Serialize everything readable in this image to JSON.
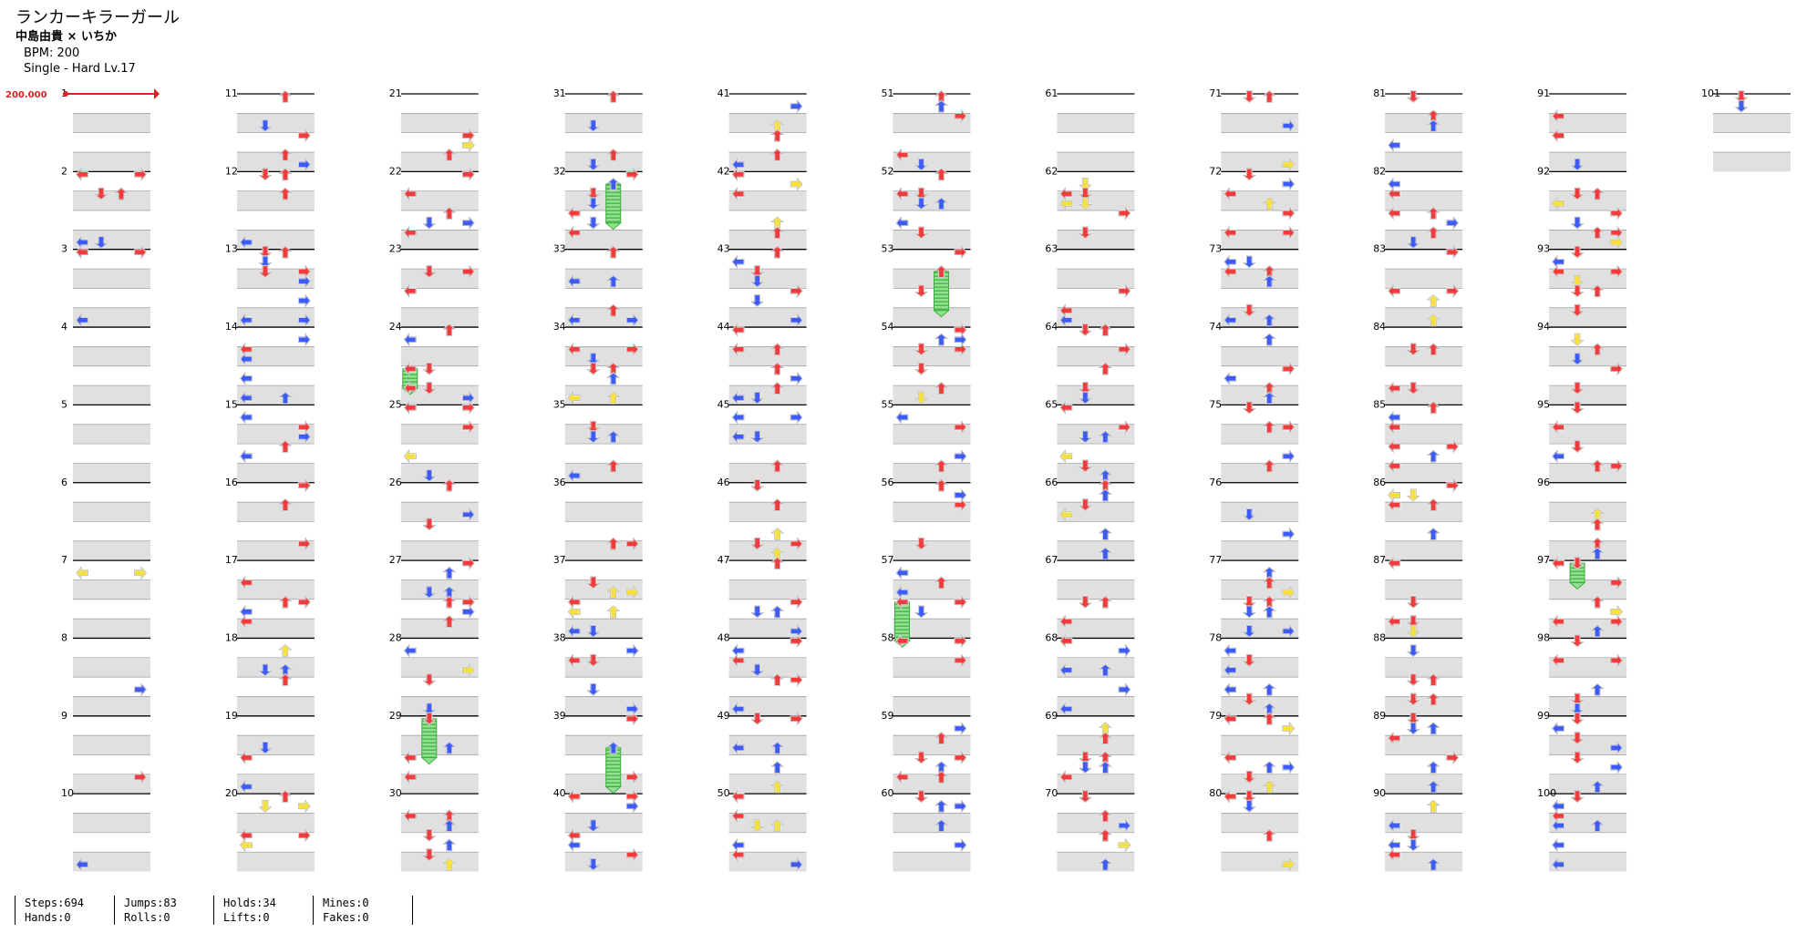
{
  "song": {
    "title": "ランカーキラーガール",
    "artist": "中島由貴 × いちか",
    "bpm_line": "BPM: 200",
    "difficulty_line": "Single - Hard  Lv.17"
  },
  "bpm_marker": "200.000",
  "measures": {
    "count": 101,
    "labels": [
      "1",
      "2",
      "3",
      "4",
      "5",
      "6",
      "7",
      "8",
      "9",
      "10",
      "11",
      "12",
      "13",
      "14",
      "15",
      "16",
      "17",
      "18",
      "19",
      "20",
      "21",
      "22",
      "23",
      "24",
      "25",
      "26",
      "27",
      "28",
      "29",
      "30",
      "31",
      "32",
      "33",
      "34",
      "35",
      "36",
      "37",
      "38",
      "39",
      "40",
      "41",
      "42",
      "43",
      "44",
      "45",
      "46",
      "47",
      "48",
      "49",
      "50",
      "51",
      "52",
      "53",
      "54",
      "55",
      "56",
      "57",
      "58",
      "59",
      "60",
      "61",
      "62",
      "63",
      "64",
      "65",
      "66",
      "67",
      "68",
      "69",
      "70",
      "71",
      "72",
      "73",
      "74",
      "75",
      "76",
      "77",
      "78",
      "79",
      "80",
      "81",
      "82",
      "83",
      "84",
      "85",
      "86",
      "87",
      "88",
      "89",
      "90",
      "91",
      "92",
      "93",
      "94",
      "95",
      "96",
      "97",
      "98",
      "99",
      "100",
      "101"
    ],
    "per_column": 10
  },
  "colors": {
    "quarter": "#f03c3c",
    "eighth": "#3d5cf5",
    "sixteenth": "#f5e03d",
    "hold": "#8fe08f",
    "hold_stripe": "#3fae3f",
    "lane_band": "#e0e0e0",
    "bpm": "#e02020"
  },
  "icons": {
    "left": "left-arrow-icon",
    "down": "down-arrow-icon",
    "up": "up-arrow-icon",
    "right": "right-arrow-icon"
  },
  "stats": {
    "steps": "Steps:694",
    "hands": "Hands:0",
    "jumps": "Jumps:83",
    "rolls": "Rolls:0",
    "holds": "Holds:34",
    "lifts": "Lifts:0",
    "mines": "Mines:0",
    "fakes": "Fakes:0"
  }
}
